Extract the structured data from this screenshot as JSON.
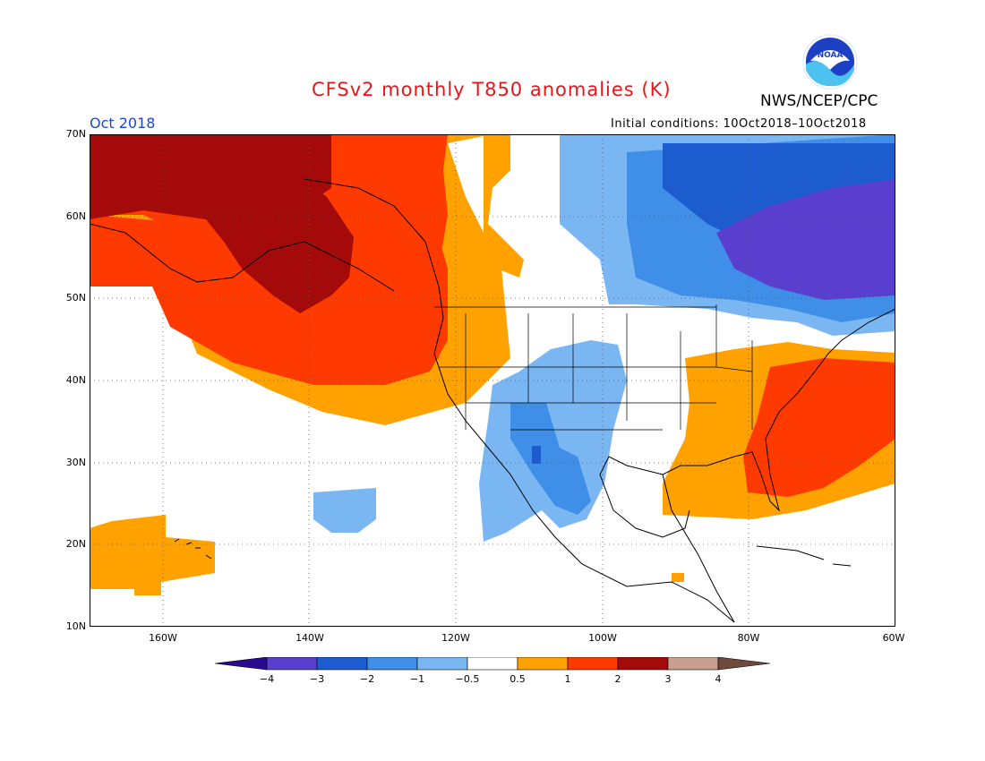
{
  "header": {
    "title": "CFSv2 monthly T850 anomalies (K)",
    "agency": "NWS/NCEP/CPC",
    "period": "Oct 2018",
    "initial_conditions": "Initial conditions: 10Oct2018–10Oct2018",
    "logo_text": "NOAA"
  },
  "map": {
    "lat_labels": [
      "70N",
      "60N",
      "50N",
      "40N",
      "30N",
      "20N",
      "10N"
    ],
    "lon_labels": [
      "160W",
      "140W",
      "120W",
      "100W",
      "80W",
      "60W"
    ],
    "lat_range": [
      10,
      70
    ],
    "lon_range": [
      -170,
      -60
    ],
    "grid": "dotted",
    "legend_placement": "bottom-center"
  },
  "colorbar": {
    "labels": [
      "−4",
      "−3",
      "−2",
      "−1",
      "−0.5",
      "0.5",
      "1",
      "2",
      "3",
      "4"
    ],
    "colors": [
      "#2a0a8e",
      "#5a3fcf",
      "#1c5ccf",
      "#3f8fe8",
      "#7ab6f2",
      "#ffffff",
      "#ffa200",
      "#ff3a00",
      "#a50a0a",
      "#c9a090",
      "#6e4a3a"
    ]
  },
  "colors": {
    "dark_red": "#a50a0a",
    "red": "#ff3a00",
    "orange": "#ffa200",
    "light_blue": "#7ab6f2",
    "blue": "#3f8fe8",
    "dark_blue": "#1c5ccf",
    "purple": "#5a3fcf"
  }
}
